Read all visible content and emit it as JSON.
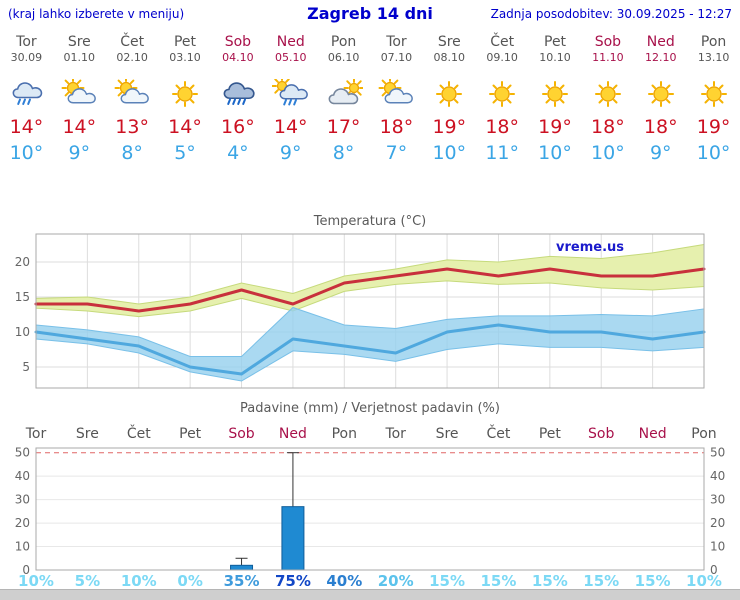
{
  "header": {
    "hint": "(kraj lahko izberete v meniju)",
    "title": "Zagreb 14 dni",
    "updated": "Zadnja posodobitev: 30.09.2025 - 12:27"
  },
  "colors": {
    "accent": "#0000cc",
    "weekend": "#a8114a",
    "temp_max": "#cc1122",
    "temp_min": "#3aa5e5",
    "text_muted": "#555555",
    "scrollbar": "#cfcfcf",
    "grid": "#dddddd",
    "plot_border": "#aaaaaa"
  },
  "days": [
    {
      "name": "Tor",
      "date": "30.09",
      "weekend": false,
      "icon": "rain",
      "tmax": "14°",
      "tmin": "10°"
    },
    {
      "name": "Sre",
      "date": "01.10",
      "weekend": false,
      "icon": "sun-cloud",
      "tmax": "14°",
      "tmin": "9°"
    },
    {
      "name": "Čet",
      "date": "02.10",
      "weekend": false,
      "icon": "sun-cloud",
      "tmax": "13°",
      "tmin": "8°"
    },
    {
      "name": "Pet",
      "date": "03.10",
      "weekend": false,
      "icon": "sunny",
      "tmax": "14°",
      "tmin": "5°"
    },
    {
      "name": "Sob",
      "date": "04.10",
      "weekend": true,
      "icon": "heavy-rain",
      "tmax": "16°",
      "tmin": "4°"
    },
    {
      "name": "Ned",
      "date": "05.10",
      "weekend": true,
      "icon": "sun-rain",
      "tmax": "14°",
      "tmin": "9°"
    },
    {
      "name": "Pon",
      "date": "06.10",
      "weekend": false,
      "icon": "cloud-sun",
      "tmax": "17°",
      "tmin": "8°"
    },
    {
      "name": "Tor",
      "date": "07.10",
      "weekend": false,
      "icon": "sun-cloud",
      "tmax": "18°",
      "tmin": "7°"
    },
    {
      "name": "Sre",
      "date": "08.10",
      "weekend": false,
      "icon": "sunny",
      "tmax": "19°",
      "tmin": "10°"
    },
    {
      "name": "Čet",
      "date": "09.10",
      "weekend": false,
      "icon": "sunny",
      "tmax": "18°",
      "tmin": "11°"
    },
    {
      "name": "Pet",
      "date": "10.10",
      "weekend": false,
      "icon": "sunny",
      "tmax": "19°",
      "tmin": "10°"
    },
    {
      "name": "Sob",
      "date": "11.10",
      "weekend": true,
      "icon": "sunny",
      "tmax": "18°",
      "tmin": "10°"
    },
    {
      "name": "Ned",
      "date": "12.10",
      "weekend": true,
      "icon": "sunny",
      "tmax": "18°",
      "tmin": "9°"
    },
    {
      "name": "Pon",
      "date": "13.10",
      "weekend": false,
      "icon": "sunny",
      "tmax": "19°",
      "tmin": "10°"
    }
  ],
  "chart_data": [
    {
      "type": "line",
      "title": "Temperatura (°C)",
      "watermark": "vreme.us",
      "x_labels": [
        "Tor 30.09",
        "Sre 01.10",
        "Čet 02.10",
        "Pet 03.10",
        "Sob 04.10",
        "Ned 05.10",
        "Pon 06.10",
        "Tor 07.10",
        "Sre 08.10",
        "Čet 09.10",
        "Pet 10.10",
        "Sob 11.10",
        "Ned 12.10",
        "Pon 13.10"
      ],
      "ylim": [
        2,
        24
      ],
      "yticks": [
        5,
        10,
        15,
        20
      ],
      "grid": true,
      "series": [
        {
          "name": "max temperature",
          "color": "#c8303c",
          "values": [
            14,
            14,
            13,
            14,
            16,
            14,
            17,
            18,
            19,
            18,
            19,
            18,
            18,
            19
          ]
        },
        {
          "name": "min temperature",
          "color": "#4fa8de",
          "values": [
            10,
            9,
            8,
            5,
            4,
            9,
            8,
            7,
            10,
            11,
            10,
            10,
            9,
            10
          ]
        }
      ],
      "bands": [
        {
          "name": "max temperature range",
          "color": "#e6f0ae",
          "edge": "#c6da7c",
          "opacity": 1,
          "upper": [
            14.8,
            15,
            14,
            15,
            17,
            15.5,
            18,
            19,
            20.3,
            20,
            20.8,
            20.5,
            21.3,
            22.5
          ],
          "lower": [
            13.4,
            13,
            12.2,
            13,
            14.8,
            13,
            15.8,
            16.8,
            17.3,
            16.8,
            17,
            16.3,
            16,
            16.5
          ]
        },
        {
          "name": "min temperature range",
          "color": "#95cfee",
          "edge": "#79c0e8",
          "opacity": 0.8,
          "upper": [
            11,
            10.3,
            9.3,
            6.5,
            6.5,
            13.5,
            11,
            10.5,
            11.8,
            12.3,
            12.3,
            12.5,
            12.3,
            13.3
          ],
          "lower": [
            9,
            8.3,
            7,
            4.3,
            3,
            7.3,
            6.8,
            5.8,
            7.5,
            8.3,
            7.8,
            7.8,
            7.3,
            7.8
          ]
        }
      ]
    },
    {
      "type": "bar",
      "title": "Padavine (mm) / Verjetnost padavin (%)",
      "categories": [
        "Tor",
        "Sre",
        "Čet",
        "Pet",
        "Sob",
        "Ned",
        "Pon",
        "Tor",
        "Sre",
        "Čet",
        "Pet",
        "Sob",
        "Ned",
        "Pon"
      ],
      "weekend": [
        false,
        false,
        false,
        false,
        true,
        true,
        false,
        false,
        false,
        false,
        false,
        true,
        true,
        false
      ],
      "values": [
        0,
        0,
        0,
        0,
        2,
        27,
        0,
        0,
        0,
        0,
        0,
        0,
        0,
        0
      ],
      "whisker_high": [
        0,
        0,
        0,
        0,
        5,
        50,
        0,
        0,
        0,
        0,
        0,
        0,
        0,
        0
      ],
      "probabilities": [
        10,
        5,
        10,
        0,
        35,
        75,
        40,
        20,
        15,
        15,
        15,
        15,
        15,
        10
      ],
      "probability_suffix": "%",
      "probability_colors": [
        {
          "min": 70,
          "color": "#1247c6"
        },
        {
          "min": 40,
          "color": "#2b7fd0"
        },
        {
          "min": 30,
          "color": "#3f9bdc"
        },
        {
          "min": 20,
          "color": "#5cc3ec"
        },
        {
          "min": 0,
          "color": "#7cd9f5"
        }
      ],
      "ylim": [
        0,
        52
      ],
      "yticks": [
        0,
        10,
        20,
        30,
        40,
        50
      ],
      "bar_color": "#1f8ad2",
      "bar_edge": "#0f5d9a",
      "limit_line": {
        "value": 50,
        "color": "#e06666",
        "style": "dashed"
      }
    }
  ]
}
